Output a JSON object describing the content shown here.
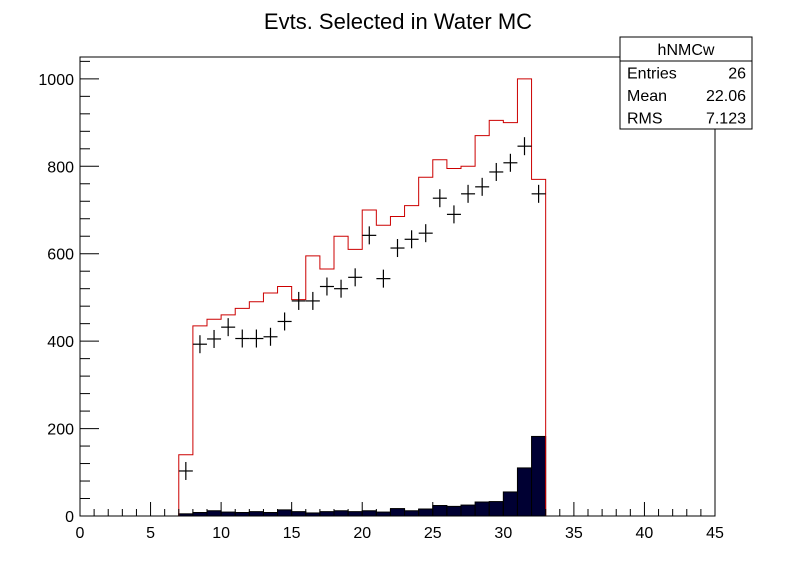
{
  "chart_data": {
    "type": "bar",
    "title": "Evts. Selected in Water MC",
    "xlabel": "",
    "ylabel": "",
    "xlim": [
      0,
      45
    ],
    "ylim": [
      0,
      1050
    ],
    "x_ticks": [
      0,
      5,
      10,
      15,
      20,
      25,
      30,
      35,
      40,
      45
    ],
    "y_ticks": [
      0,
      200,
      400,
      600,
      800,
      1000
    ],
    "bin_width": 1,
    "grid": false,
    "stats_box": {
      "placement": "top-right",
      "title": "hNMCw",
      "rows": [
        {
          "label": "Entries",
          "value": "26"
        },
        {
          "label": "Mean",
          "value": "22.06"
        },
        {
          "label": "RMS",
          "value": "7.123"
        }
      ]
    },
    "series": [
      {
        "type": "step",
        "color": "#cc0000",
        "x": [
          7,
          8,
          9,
          10,
          11,
          12,
          13,
          14,
          15,
          16,
          17,
          18,
          19,
          20,
          21,
          22,
          23,
          24,
          25,
          26,
          27,
          28,
          29,
          30,
          31,
          32
        ],
        "values": [
          140,
          435,
          450,
          460,
          475,
          490,
          510,
          525,
          495,
          595,
          565,
          640,
          610,
          700,
          665,
          685,
          710,
          775,
          815,
          795,
          800,
          870,
          905,
          900,
          1000,
          770
        ]
      },
      {
        "type": "markers",
        "color": "#000000",
        "x": [
          7,
          8,
          9,
          10,
          11,
          12,
          13,
          14,
          15,
          16,
          17,
          18,
          19,
          20,
          21,
          22,
          23,
          24,
          25,
          26,
          27,
          28,
          29,
          30,
          31,
          32
        ],
        "values": [
          103,
          393,
          405,
          432,
          406,
          406,
          410,
          445,
          492,
          492,
          525,
          520,
          546,
          642,
          543,
          613,
          633,
          647,
          727,
          690,
          737,
          753,
          787,
          808,
          846,
          737
        ]
      },
      {
        "type": "filled",
        "color": "#000000",
        "fill_color": "#000033",
        "x": [
          7,
          8,
          9,
          10,
          11,
          12,
          13,
          14,
          15,
          16,
          17,
          18,
          19,
          20,
          21,
          22,
          23,
          24,
          25,
          26,
          27,
          28,
          29,
          30,
          31,
          32
        ],
        "values": [
          5,
          8,
          12,
          9,
          8,
          10,
          8,
          14,
          10,
          7,
          10,
          12,
          10,
          12,
          9,
          17,
          12,
          16,
          24,
          22,
          25,
          32,
          33,
          55,
          110,
          182
        ]
      }
    ]
  }
}
